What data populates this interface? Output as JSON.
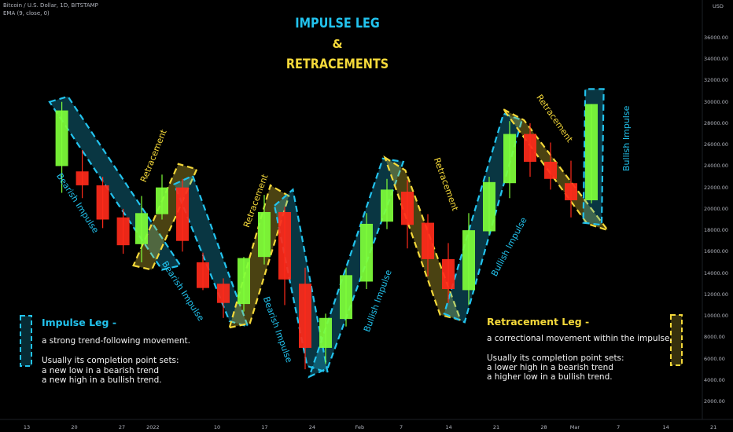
{
  "header": {
    "symbol_line": "Bitcoin / U.S. Dollar, 1D, BITSTAMP",
    "indicator_line": "EMA (9, close, 0)",
    "currency": "USD"
  },
  "title": {
    "line1": "IMPULSE LEG",
    "line2": "&",
    "line3": "RETRACEMENTS"
  },
  "colors": {
    "impulse": "#22c3ee",
    "retracement": "#f5d93a",
    "bull_candle": "#7fff3a",
    "bear_candle": "#ff2a1a"
  },
  "impulse_panel": {
    "title": "Impulse Leg -",
    "line1": "a strong trend-following movement.",
    "line2": "Usually its completion point sets:",
    "line3": "a new low in a bearish trend",
    "line4": "a new high in a bullish trend."
  },
  "retracement_panel": {
    "title": "Retracement Leg -",
    "line1": "a correctional movement within the impulse.",
    "line2": "Usually its completion point sets:",
    "line3": "a lower high in a bearish trend",
    "line4": "a higher low in a bullish trend."
  },
  "leg_labels": {
    "bearish_impulse": "Bearish Impulse",
    "bullish_impulse": "Bullish Impulse",
    "retracement": "Retracement"
  },
  "chart_data": {
    "type": "candlestick",
    "y_axis": {
      "ticks": [
        2000,
        4000,
        6000,
        8000,
        10000,
        12000,
        14000,
        16000,
        18000,
        20000,
        22000,
        24000,
        26000,
        28000,
        30000,
        32000,
        34000,
        36000
      ],
      "labels": [
        "2000.00",
        "4000.00",
        "6000.00",
        "8000.00",
        "10000.00",
        "12000.00",
        "14000.00",
        "16000.00",
        "18000.00",
        "20000.00",
        "22000.00",
        "24000.00",
        "26000.00",
        "28000.00",
        "30000.00",
        "32000.00",
        "34000.00",
        "36000.00"
      ]
    },
    "x_axis": {
      "ticks": [
        {
          "label": "13",
          "pos": 0
        },
        {
          "label": "20",
          "pos": 2.3
        },
        {
          "label": "27",
          "pos": 4.6
        },
        {
          "label": "2022",
          "pos": 6.1
        },
        {
          "label": "10",
          "pos": 9.2
        },
        {
          "label": "17",
          "pos": 11.5
        },
        {
          "label": "24",
          "pos": 13.8
        },
        {
          "label": "Feb",
          "pos": 16.1
        },
        {
          "label": "7",
          "pos": 18.1
        },
        {
          "label": "14",
          "pos": 20.4
        },
        {
          "label": "21",
          "pos": 22.7
        },
        {
          "label": "28",
          "pos": 25.0
        },
        {
          "label": "Mar",
          "pos": 26.5
        },
        {
          "label": "7",
          "pos": 28.6
        },
        {
          "label": "14",
          "pos": 30.9
        },
        {
          "label": "21",
          "pos": 33.2
        }
      ]
    },
    "candles": [
      {
        "i": 1.6,
        "o": 24000,
        "c": 29200,
        "h": 30000,
        "l": 21500
      },
      {
        "i": 2.6,
        "o": 23500,
        "c": 22200,
        "h": 25500,
        "l": 21000
      },
      {
        "i": 3.6,
        "o": 22200,
        "c": 19000,
        "h": 23000,
        "l": 18200
      },
      {
        "i": 4.6,
        "o": 19200,
        "c": 16600,
        "h": 20000,
        "l": 15800
      },
      {
        "i": 5.5,
        "o": 16700,
        "c": 19600,
        "h": 21200,
        "l": 15000
      },
      {
        "i": 6.5,
        "o": 19500,
        "c": 22000,
        "h": 23200,
        "l": 19000
      },
      {
        "i": 7.5,
        "o": 22000,
        "c": 17000,
        "h": 22800,
        "l": 16000
      },
      {
        "i": 8.5,
        "o": 15000,
        "c": 12600,
        "h": 15900,
        "l": 12400
      },
      {
        "i": 9.5,
        "o": 13000,
        "c": 11200,
        "h": 13500,
        "l": 9800
      },
      {
        "i": 10.5,
        "o": 11100,
        "c": 15400,
        "h": 15500,
        "l": 10400
      },
      {
        "i": 11.5,
        "o": 15500,
        "c": 19700,
        "h": 21300,
        "l": 14800
      },
      {
        "i": 12.5,
        "o": 19700,
        "c": 13400,
        "h": 20200,
        "l": 11000
      },
      {
        "i": 13.5,
        "o": 13000,
        "c": 7000,
        "h": 14500,
        "l": 5000
      },
      {
        "i": 14.5,
        "o": 7000,
        "c": 9800,
        "h": 10200,
        "l": 5500
      },
      {
        "i": 15.5,
        "o": 9700,
        "c": 13800,
        "h": 14500,
        "l": 9000
      },
      {
        "i": 16.5,
        "o": 13200,
        "c": 18600,
        "h": 19600,
        "l": 12500
      },
      {
        "i": 17.5,
        "o": 18800,
        "c": 21800,
        "h": 22800,
        "l": 18100
      },
      {
        "i": 18.5,
        "o": 21600,
        "c": 18500,
        "h": 22700,
        "l": 16300
      },
      {
        "i": 19.5,
        "o": 18700,
        "c": 15300,
        "h": 19500,
        "l": 13700
      },
      {
        "i": 20.5,
        "o": 15300,
        "c": 12500,
        "h": 16800,
        "l": 11200
      },
      {
        "i": 21.5,
        "o": 12400,
        "c": 18000,
        "h": 19600,
        "l": 11000
      },
      {
        "i": 22.5,
        "o": 17900,
        "c": 22500,
        "h": 23000,
        "l": 17600
      },
      {
        "i": 23.5,
        "o": 22400,
        "c": 27000,
        "h": 28200,
        "l": 21000
      },
      {
        "i": 24.5,
        "o": 27000,
        "c": 24400,
        "h": 28000,
        "l": 23000
      },
      {
        "i": 25.5,
        "o": 24400,
        "c": 22800,
        "h": 26200,
        "l": 21800
      },
      {
        "i": 26.5,
        "o": 22400,
        "c": 20800,
        "h": 24500,
        "l": 19200
      },
      {
        "i": 27.5,
        "o": 20800,
        "c": 29800,
        "h": 29800,
        "l": 20500
      }
    ]
  }
}
